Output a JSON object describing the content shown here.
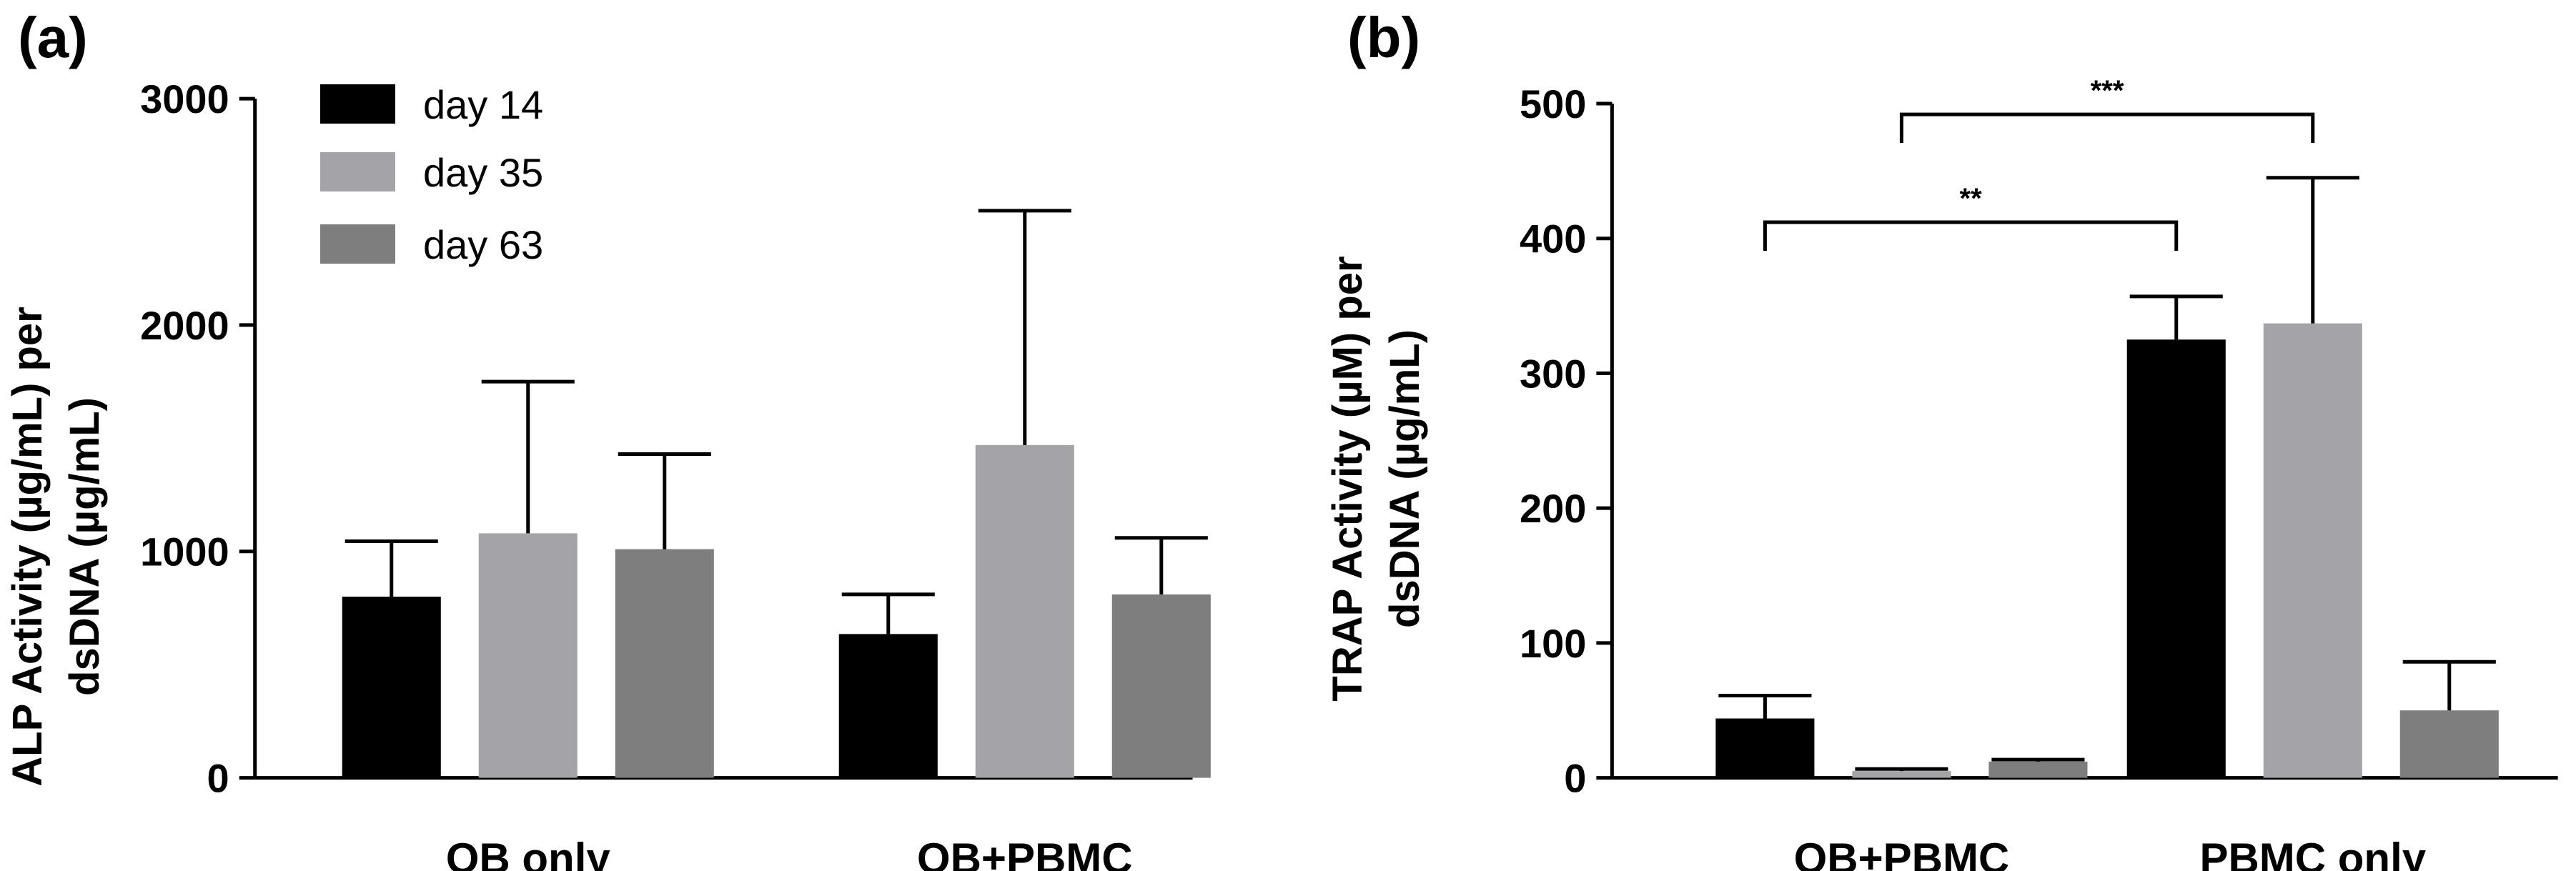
{
  "colors": {
    "day14": "#000000",
    "day35": "#a4a3a7",
    "day63": "#7e7e7e"
  },
  "chart_data": [
    {
      "panel": "(a)",
      "type": "bar",
      "ylabel_lines": [
        "ALP Activity (µg/mL) per",
        "dsDNA (µg/mL)"
      ],
      "categories": [
        "OB only",
        "OB+PBMC"
      ],
      "ylim": [
        0,
        3000
      ],
      "yticks": [
        "0",
        "1000",
        "2000",
        "3000"
      ],
      "series": [
        {
          "name": "day 14",
          "color_key": "day14",
          "values": [
            800,
            635
          ],
          "errors": [
            245,
            175
          ]
        },
        {
          "name": "day 35",
          "color_key": "day35",
          "values": [
            1080,
            1470
          ],
          "errors": [
            670,
            1035
          ]
        },
        {
          "name": "day 63",
          "color_key": "day63",
          "values": [
            1010,
            810
          ],
          "errors": [
            420,
            250
          ]
        }
      ],
      "legend": {
        "position": "top-left",
        "entries": [
          "day 14",
          "day 35",
          "day 63"
        ]
      }
    },
    {
      "panel": "(b)",
      "type": "bar",
      "ylabel_lines": [
        "TRAP Activity (µM) per",
        "dsDNA (µg/mL)"
      ],
      "categories": [
        "OB+PBMC",
        "PBMC only"
      ],
      "ylim": [
        0,
        500
      ],
      "yticks": [
        "0",
        "100",
        "200",
        "300",
        "400",
        "500"
      ],
      "series": [
        {
          "name": "day 14",
          "color_key": "day14",
          "values": [
            44,
            325
          ],
          "errors": [
            17,
            32
          ]
        },
        {
          "name": "day 35",
          "color_key": "day35",
          "values": [
            5,
            337
          ],
          "errors": [
            1.5,
            108
          ]
        },
        {
          "name": "day 63",
          "color_key": "day63",
          "values": [
            12,
            50
          ],
          "errors": [
            1.5,
            36
          ]
        }
      ],
      "annotations": [
        {
          "label": "**",
          "from": {
            "category": 0,
            "series": 0
          },
          "to": {
            "category": 1,
            "series": 0
          },
          "y": 412
        },
        {
          "label": "***",
          "from": {
            "category": 0,
            "series": 1
          },
          "to": {
            "category": 1,
            "series": 1
          },
          "y": 492
        }
      ]
    }
  ]
}
